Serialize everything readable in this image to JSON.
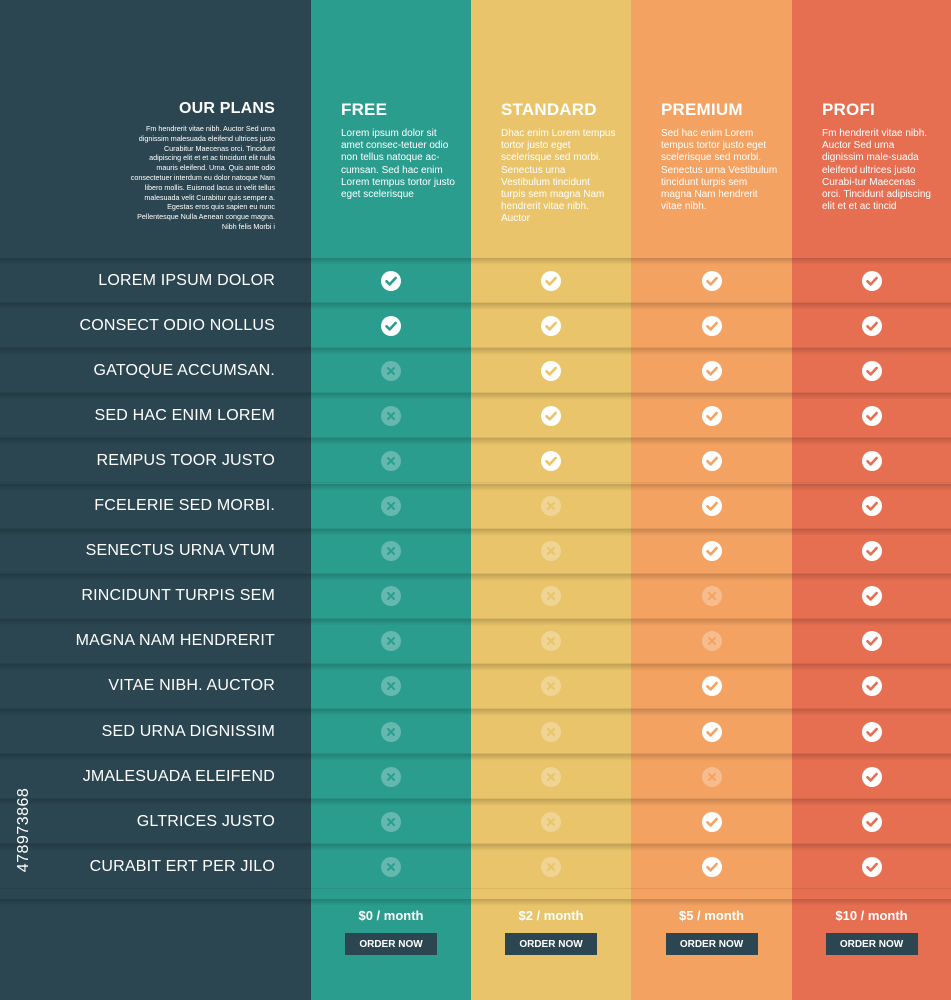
{
  "header": {
    "title": "OUR PLANS",
    "description": "Fm hendrerit vitae nibh. Auctor Sed urna dignissim malesuada eleifend ultrices justo Curabitur Maecenas orci. Tincidunt adipiscing elit et et ac tincidunt elit nulla mauris eleifend. Urna. Quis ante odio consectetuer interdum eu dolor natoque Nam libero mollis. Euismod lacus ut velit tellus malesuada velit Curabitur quis semper a. Egestas eros quis sapien eu nunc Pellentesque Nulla Aenean congue magna. Nibh felis Morbi i"
  },
  "features": [
    "LOREM IPSUM DOLOR",
    "CONSECT ODIO NOLLUS",
    "GATOQUE ACCUMSAN.",
    "SED HAC ENIM LOREM",
    "REMPUS TOOR JUSTO",
    "FCELERIE SED MORBI.",
    "SENECTUS URNA VTUM",
    "RINCIDUNT TURPIS SEM",
    "MAGNA NAM HENDRERIT",
    "VITAE NIBH. AUCTOR",
    "SED URNA DIGNISSIM",
    "JMALESUADA ELEIFEND",
    "GLTRICES JUSTO",
    "CURABIT ERT PER JILO"
  ],
  "plans": [
    {
      "name": "FREE",
      "description": "Lorem ipsum dolor sit amet consec-tetuer odio non tellus natoque ac-cumsan. Sed hac enim Lorem tempus tortor justo eget scelerisque",
      "color": "#2a9d8f",
      "price": "$0 / month",
      "order_label": "ORDER NOW",
      "included": [
        true,
        true,
        false,
        false,
        false,
        false,
        false,
        false,
        false,
        false,
        false,
        false,
        false,
        false
      ]
    },
    {
      "name": "STANDARD",
      "description": "Dhac enim Lorem tempus tortor justo eget scelerisque sed morbi. Senectus urna Vestibulum tincidunt turpis sem magna Nam hendrerit vitae nibh. Auctor",
      "color": "#e9c46a",
      "price": "$2 / month",
      "order_label": "ORDER NOW",
      "included": [
        true,
        true,
        true,
        true,
        true,
        false,
        false,
        false,
        false,
        false,
        false,
        false,
        false,
        false
      ]
    },
    {
      "name": "PREMIUM",
      "description": "Sed hac enim Lorem tempus tortor justo eget scelerisque sed morbi. Senectus urna Vestibulum tincidunt turpis sem magna Nam hendrerit vitae nibh.",
      "color": "#f4a261",
      "price": "$5 / month",
      "order_label": "ORDER NOW",
      "included": [
        true,
        true,
        true,
        true,
        true,
        true,
        true,
        false,
        false,
        true,
        true,
        false,
        true,
        true
      ]
    },
    {
      "name": "PROFI",
      "description": "Fm hendrerit vitae nibh. Auctor Sed urna dignissim male-suada eleifend ultrices justo Curabi-tur Maecenas orci. Tincidunt adipiscing elit et et ac tincid",
      "color": "#e76f51",
      "price": "$10 / month",
      "order_label": "ORDER NOW",
      "included": [
        true,
        true,
        true,
        true,
        true,
        true,
        true,
        true,
        true,
        true,
        true,
        true,
        true,
        true
      ]
    }
  ],
  "stock_id": "478973868"
}
